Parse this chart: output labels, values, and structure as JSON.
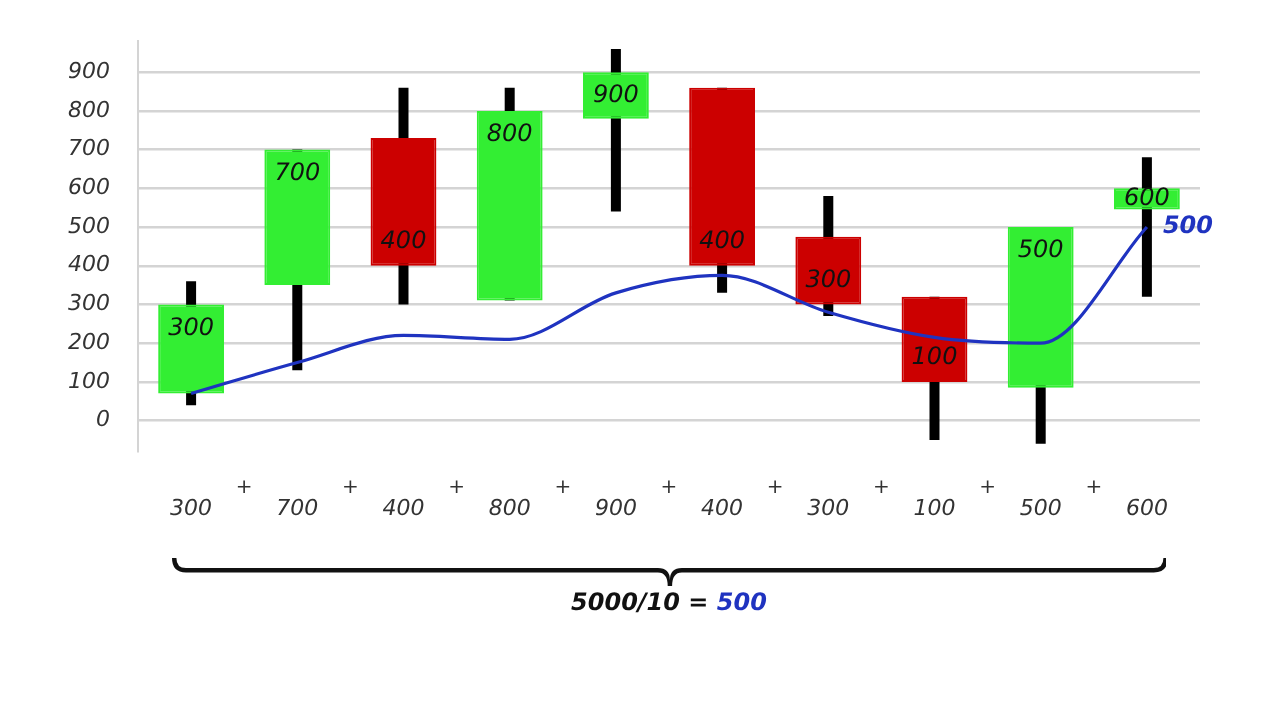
{
  "chart_data": {
    "type": "candlestick",
    "categories": [
      "300",
      "700",
      "400",
      "800",
      "900",
      "400",
      "300",
      "100",
      "500",
      "600"
    ],
    "ohlc": [
      [
        70,
        360,
        40,
        300
      ],
      [
        350,
        700,
        130,
        700
      ],
      [
        730,
        860,
        300,
        400
      ],
      [
        310,
        860,
        310,
        800
      ],
      [
        780,
        960,
        540,
        900
      ],
      [
        860,
        860,
        330,
        400
      ],
      [
        475,
        580,
        270,
        300
      ],
      [
        320,
        320,
        -50,
        100
      ],
      [
        85,
        500,
        -60,
        500
      ],
      [
        545,
        680,
        320,
        600
      ]
    ],
    "colors": [
      "#33ee33",
      "#33ee33",
      "#cc0000",
      "#33ee33",
      "#33ee33",
      "#cc0000",
      "#cc0000",
      "#cc0000",
      "#33ee33",
      "#33ee33"
    ],
    "series": [
      {
        "type": "line",
        "color": "#1f33c0",
        "values": [
          70,
          150,
          220,
          210,
          330,
          375,
          280,
          215,
          200,
          500
        ],
        "value_labels": [
          null,
          null,
          null,
          null,
          null,
          null,
          null,
          null,
          null,
          "500"
        ]
      }
    ],
    "value_labels": [
      "300",
      "700",
      "400",
      "800",
      "900",
      "400",
      "300",
      "100",
      "500",
      "600"
    ],
    "ylim": [
      -80,
      980
    ],
    "yticks": [
      0,
      100,
      200,
      300,
      400,
      500,
      600,
      700,
      800,
      900
    ],
    "grid": "y",
    "legend": false,
    "annotations": [
      "+",
      "+",
      "+",
      "+",
      "+",
      "+",
      "+",
      "+",
      "+",
      "5000/10 = 500"
    ]
  }
}
